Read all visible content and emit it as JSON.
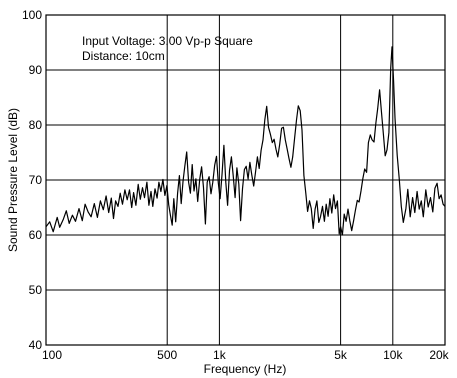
{
  "chart_data": {
    "type": "line",
    "title": "",
    "xlabel": "Frequency (Hz)",
    "ylabel": "Sound Pressure Level (dB)",
    "x_scale": "log",
    "xlim": [
      100,
      20000
    ],
    "ylim": [
      40,
      100
    ],
    "grid": true,
    "x_ticks": [
      {
        "value": 100,
        "label": "100"
      },
      {
        "value": 500,
        "label": "500"
      },
      {
        "value": 1000,
        "label": "1k"
      },
      {
        "value": 5000,
        "label": "5k"
      },
      {
        "value": 10000,
        "label": "10k"
      },
      {
        "value": 20000,
        "label": "20k"
      }
    ],
    "y_ticks": [
      40,
      50,
      60,
      70,
      80,
      90,
      100
    ],
    "annotations": [
      "Input Voltage: 3.00 Vp-p Square",
      "Distance: 10cm"
    ],
    "series": [
      {
        "color": "#000000",
        "points": [
          [
            100,
            61.5
          ],
          [
            105,
            62.4
          ],
          [
            110,
            60.6
          ],
          [
            116,
            63.2
          ],
          [
            120,
            61.4
          ],
          [
            126,
            62.9
          ],
          [
            131,
            64.4
          ],
          [
            136,
            62.1
          ],
          [
            142,
            63.6
          ],
          [
            148,
            62.5
          ],
          [
            155,
            64.8
          ],
          [
            162,
            62.6
          ],
          [
            168,
            65.6
          ],
          [
            175,
            64.2
          ],
          [
            182,
            63.3
          ],
          [
            190,
            65.7
          ],
          [
            198,
            63.2
          ],
          [
            206,
            66.2
          ],
          [
            214,
            64.6
          ],
          [
            222,
            67.1
          ],
          [
            230,
            64.1
          ],
          [
            238,
            66.7
          ],
          [
            245,
            63.0
          ],
          [
            252,
            66.2
          ],
          [
            260,
            65.2
          ],
          [
            268,
            67.6
          ],
          [
            276,
            65.6
          ],
          [
            285,
            68.2
          ],
          [
            294,
            66.4
          ],
          [
            303,
            68.2
          ],
          [
            312,
            65.0
          ],
          [
            320,
            67.7
          ],
          [
            330,
            65.4
          ],
          [
            340,
            69.2
          ],
          [
            350,
            66.5
          ],
          [
            360,
            68.6
          ],
          [
            370,
            66.8
          ],
          [
            382,
            69.6
          ],
          [
            392,
            65.4
          ],
          [
            403,
            67.9
          ],
          [
            413,
            65.2
          ],
          [
            425,
            68.4
          ],
          [
            437,
            66.7
          ],
          [
            448,
            69.6
          ],
          [
            460,
            67.9
          ],
          [
            472,
            70.1
          ],
          [
            485,
            67.2
          ],
          [
            498,
            69.0
          ],
          [
            510,
            65.5
          ],
          [
            522,
            63.6
          ],
          [
            534,
            61.8
          ],
          [
            546,
            66.6
          ],
          [
            560,
            62.4
          ],
          [
            574,
            67.6
          ],
          [
            588,
            70.8
          ],
          [
            602,
            65.7
          ],
          [
            617,
            69.7
          ],
          [
            632,
            72.5
          ],
          [
            648,
            75.1
          ],
          [
            664,
            69.6
          ],
          [
            680,
            67.6
          ],
          [
            697,
            72.8
          ],
          [
            714,
            68.0
          ],
          [
            732,
            70.2
          ],
          [
            750,
            66.1
          ],
          [
            770,
            70.1
          ],
          [
            790,
            72.4
          ],
          [
            810,
            68.6
          ],
          [
            830,
            62.0
          ],
          [
            850,
            69.6
          ],
          [
            872,
            70.6
          ],
          [
            894,
            67.5
          ],
          [
            916,
            69.6
          ],
          [
            939,
            72.7
          ],
          [
            962,
            74.3
          ],
          [
            986,
            69.5
          ],
          [
            1010,
            66.6
          ],
          [
            1036,
            71.2
          ],
          [
            1062,
            76.3
          ],
          [
            1088,
            69.6
          ],
          [
            1115,
            65.4
          ],
          [
            1143,
            71.7
          ],
          [
            1172,
            74.2
          ],
          [
            1201,
            70.8
          ],
          [
            1231,
            66.8
          ],
          [
            1262,
            72.2
          ],
          [
            1294,
            69.3
          ],
          [
            1326,
            62.6
          ],
          [
            1359,
            68.4
          ],
          [
            1393,
            71.9
          ],
          [
            1428,
            72.5
          ],
          [
            1464,
            70.2
          ],
          [
            1500,
            73.2
          ],
          [
            1538,
            70.9
          ],
          [
            1576,
            68.9
          ],
          [
            1616,
            71.4
          ],
          [
            1656,
            74.2
          ],
          [
            1697,
            72.1
          ],
          [
            1740,
            75.4
          ],
          [
            1783,
            77.3
          ],
          [
            1828,
            80.9
          ],
          [
            1874,
            83.4
          ],
          [
            1920,
            79.6
          ],
          [
            1968,
            78.3
          ],
          [
            2018,
            76.8
          ],
          [
            2068,
            77.4
          ],
          [
            2120,
            75.6
          ],
          [
            2173,
            74.2
          ],
          [
            2227,
            76.5
          ],
          [
            2283,
            79.4
          ],
          [
            2340,
            79.6
          ],
          [
            2399,
            77.3
          ],
          [
            2459,
            75.6
          ],
          [
            2520,
            73.9
          ],
          [
            2583,
            72.3
          ],
          [
            2648,
            74.2
          ],
          [
            2714,
            77.6
          ],
          [
            2782,
            80.9
          ],
          [
            2852,
            83.5
          ],
          [
            2923,
            82.6
          ],
          [
            2996,
            79.1
          ],
          [
            3071,
            70.8
          ],
          [
            3148,
            67.6
          ],
          [
            3227,
            64.3
          ],
          [
            3307,
            66.2
          ],
          [
            3390,
            64.8
          ],
          [
            3475,
            61.2
          ],
          [
            3562,
            64.7
          ],
          [
            3651,
            66.2
          ],
          [
            3742,
            62.3
          ],
          [
            3836,
            63.4
          ],
          [
            3932,
            65.2
          ],
          [
            4030,
            62.5
          ],
          [
            4131,
            65.6
          ],
          [
            4234,
            63.4
          ],
          [
            4340,
            66.6
          ],
          [
            4449,
            64.0
          ],
          [
            4560,
            67.3
          ],
          [
            4674,
            64.8
          ],
          [
            4791,
            66.2
          ],
          [
            4911,
            60.2
          ],
          [
            5000,
            61.5
          ],
          [
            5120,
            60.0
          ],
          [
            5248,
            63.8
          ],
          [
            5379,
            62.5
          ],
          [
            5514,
            64.7
          ],
          [
            5651,
            62.6
          ],
          [
            5793,
            60.8
          ],
          [
            5938,
            62.6
          ],
          [
            6086,
            64.5
          ],
          [
            6238,
            66.3
          ],
          [
            6394,
            66.0
          ],
          [
            6554,
            68.0
          ],
          [
            6718,
            70.2
          ],
          [
            6886,
            72.0
          ],
          [
            7058,
            71.4
          ],
          [
            7235,
            76.8
          ],
          [
            7416,
            78.2
          ],
          [
            7601,
            77.3
          ],
          [
            7791,
            76.9
          ],
          [
            7986,
            80.4
          ],
          [
            8185,
            83.0
          ],
          [
            8390,
            86.4
          ],
          [
            8600,
            82.5
          ],
          [
            8815,
            78.5
          ],
          [
            9035,
            74.4
          ],
          [
            9261,
            75.5
          ],
          [
            9493,
            78.6
          ],
          [
            9730,
            90.3
          ],
          [
            9900,
            94.2
          ],
          [
            10100,
            87.9
          ],
          [
            10300,
            81.3
          ],
          [
            10600,
            74.5
          ],
          [
            10900,
            70.1
          ],
          [
            11200,
            65.2
          ],
          [
            11500,
            62.3
          ],
          [
            11900,
            64.8
          ],
          [
            12200,
            68.3
          ],
          [
            12600,
            63.3
          ],
          [
            13000,
            66.8
          ],
          [
            13400,
            64.1
          ],
          [
            13800,
            67.9
          ],
          [
            14200,
            64.7
          ],
          [
            14600,
            66.2
          ],
          [
            15000,
            63.3
          ],
          [
            15500,
            68.2
          ],
          [
            16000,
            65.1
          ],
          [
            16500,
            66.8
          ],
          [
            17000,
            64.2
          ],
          [
            17500,
            68.5
          ],
          [
            18000,
            69.4
          ],
          [
            18500,
            66.6
          ],
          [
            19000,
            67.3
          ],
          [
            19500,
            65.6
          ],
          [
            20000,
            65.2
          ]
        ]
      }
    ]
  }
}
